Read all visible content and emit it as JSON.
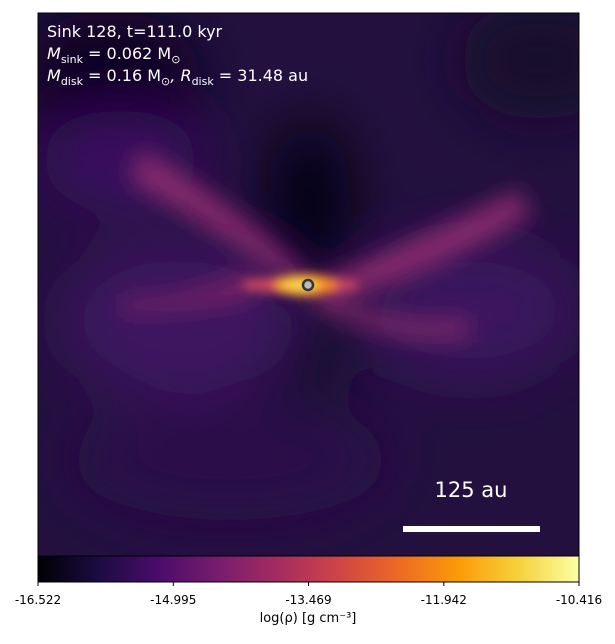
{
  "chart_data": {
    "type": "density-map",
    "annotations": [
      [
        {
          "text": "Sink 128, t=111.0 kyr"
        }
      ],
      [
        {
          "text": "M"
        },
        {
          "sub": "sink"
        },
        {
          "text": " = 0.062 M"
        },
        {
          "sub": "⊙"
        }
      ],
      [
        {
          "text": "M"
        },
        {
          "sub": "disk"
        },
        {
          "text": " = 0.16 M"
        },
        {
          "sub": "⊙"
        },
        {
          "text": ", R"
        },
        {
          "sub": "disk"
        },
        {
          "text": " = 31.48 au"
        }
      ]
    ],
    "scale_bar": "125 au",
    "colormap": "inferno",
    "clim": [
      -16.522,
      -10.416
    ],
    "cticks": [
      -16.522,
      -14.995,
      -13.469,
      -11.942,
      -10.416
    ],
    "colorbar_label": "log(ρ) [g cm⁻³]"
  }
}
